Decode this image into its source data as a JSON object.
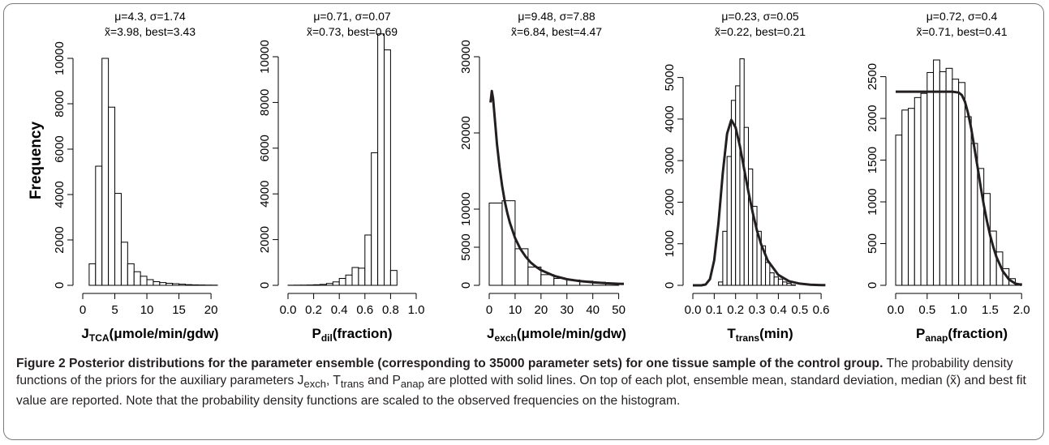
{
  "y_axis_label": "Frequency",
  "chart_data": [
    {
      "type": "bar",
      "stats_line1": "μ=4.3, σ=1.74",
      "stats_line2": "x̃=3.98, best=3.43",
      "xlabel_main": "J",
      "xlabel_sub": "TCA",
      "xlabel_rest": "(μmole/min/gdw)",
      "xlim": [
        0,
        21
      ],
      "ylim": [
        0,
        10000
      ],
      "x_ticks": [
        0,
        5,
        10,
        15,
        20
      ],
      "x_tick_labels": [
        "0",
        "5",
        "10",
        "15",
        "20"
      ],
      "y_ticks": [
        0,
        2000,
        4000,
        6000,
        8000,
        10000
      ],
      "y_tick_labels": [
        "0",
        "2000",
        "4000",
        "6000",
        "8000",
        "10000"
      ],
      "bin_edges": [
        1,
        2,
        3,
        4,
        5,
        6,
        7,
        8,
        9,
        10,
        11,
        12,
        13,
        14,
        15,
        16,
        17,
        18,
        19,
        20,
        21
      ],
      "values": [
        950,
        5250,
        10000,
        7850,
        4050,
        1900,
        950,
        600,
        400,
        250,
        160,
        120,
        90,
        70,
        50,
        30,
        20,
        15,
        10,
        8
      ],
      "curve": null
    },
    {
      "type": "bar",
      "stats_line1": "μ=0.71, σ=0.07",
      "stats_line2": "x̃=0.73, best=0.69",
      "xlabel_main": "P",
      "xlabel_sub": "dil",
      "xlabel_rest": "(fraction)",
      "xlim": [
        0,
        1
      ],
      "ylim": [
        0,
        10000
      ],
      "x_ticks": [
        0,
        0.2,
        0.4,
        0.6,
        0.8,
        1.0
      ],
      "x_tick_labels": [
        "0.0",
        "0.2",
        "0.4",
        "0.6",
        "0.8",
        "1.0"
      ],
      "y_ticks": [
        0,
        2000,
        4000,
        6000,
        8000,
        10000
      ],
      "y_tick_labels": [
        "0",
        "2000",
        "4000",
        "6000",
        "8000",
        "10000"
      ],
      "bin_edges": [
        0,
        0.05,
        0.1,
        0.15,
        0.2,
        0.25,
        0.3,
        0.35,
        0.4,
        0.45,
        0.5,
        0.55,
        0.6,
        0.65,
        0.7,
        0.75,
        0.8,
        0.85
      ],
      "values": [
        5,
        8,
        10,
        15,
        25,
        40,
        80,
        150,
        300,
        450,
        780,
        750,
        2200,
        5800,
        11000,
        10300,
        650
      ],
      "curve": null
    },
    {
      "type": "bar",
      "stats_line1": "μ=9.48, σ=7.88",
      "stats_line2": "x̃=6.84, best=4.47",
      "xlabel_main": "J",
      "xlabel_sub": "exch",
      "xlabel_rest": "(μmole/min/gdw)",
      "xlim": [
        0,
        52
      ],
      "ylim": [
        0,
        30000
      ],
      "x_ticks": [
        0,
        10,
        20,
        30,
        40,
        50
      ],
      "x_tick_labels": [
        "0",
        "10",
        "20",
        "30",
        "40",
        "50"
      ],
      "y_ticks": [
        0,
        5000,
        10000,
        20000,
        30000
      ],
      "y_tick_labels": [
        "0",
        "5000",
        "10000",
        "20000",
        "30000"
      ],
      "bin_edges": [
        0,
        5,
        10,
        15,
        20,
        25,
        30,
        35,
        40,
        45,
        50
      ],
      "values": [
        10800,
        11100,
        4800,
        2400,
        1400,
        900,
        700,
        550,
        400,
        200
      ],
      "curve": {
        "x": [
          0.5,
          1,
          1.5,
          2,
          2.5,
          3,
          4,
          5,
          6,
          7,
          8,
          10,
          12,
          14,
          16,
          18,
          20,
          25,
          30,
          35,
          40,
          45,
          50,
          52
        ],
        "y": [
          24000,
          25500,
          24500,
          22500,
          20500,
          18500,
          15500,
          13000,
          11000,
          9500,
          8200,
          6200,
          4800,
          3800,
          3000,
          2450,
          2000,
          1250,
          800,
          550,
          400,
          280,
          200,
          180
        ]
      }
    },
    {
      "type": "bar",
      "stats_line1": "μ=0.23, σ=0.05",
      "stats_line2": "x̃=0.22, best=0.21",
      "xlabel_main": "T",
      "xlabel_sub": "trans",
      "xlabel_rest": "(min)",
      "xlim": [
        0,
        0.63
      ],
      "ylim": [
        0,
        5500
      ],
      "x_ticks": [
        0,
        0.1,
        0.2,
        0.3,
        0.4,
        0.5,
        0.6
      ],
      "x_tick_labels": [
        "0.0",
        "0.1",
        "0.2",
        "0.3",
        "0.4",
        "0.5",
        "0.6"
      ],
      "y_ticks": [
        0,
        1000,
        2000,
        3000,
        4000,
        5000
      ],
      "y_tick_labels": [
        "0",
        "1000",
        "2000",
        "3000",
        "4000",
        "5000"
      ],
      "bin_edges": [
        0.12,
        0.14,
        0.16,
        0.18,
        0.2,
        0.22,
        0.24,
        0.26,
        0.28,
        0.3,
        0.32,
        0.34,
        0.36,
        0.38,
        0.4,
        0.42,
        0.44,
        0.46,
        0.48
      ],
      "values": [
        80,
        1300,
        3100,
        4450,
        4800,
        5450,
        3800,
        2800,
        1900,
        1300,
        950,
        550,
        300,
        200,
        150,
        80,
        50,
        10
      ],
      "curve": {
        "x": [
          0,
          0.04,
          0.06,
          0.08,
          0.1,
          0.12,
          0.14,
          0.16,
          0.18,
          0.2,
          0.22,
          0.24,
          0.26,
          0.28,
          0.3,
          0.32,
          0.35,
          0.4,
          0.45,
          0.5,
          0.55,
          0.6,
          0.62
        ],
        "y": [
          0,
          0,
          20,
          150,
          600,
          1500,
          2700,
          3650,
          3980,
          3800,
          3350,
          2800,
          2250,
          1750,
          1320,
          980,
          600,
          250,
          100,
          40,
          15,
          5,
          3
        ]
      }
    },
    {
      "type": "bar",
      "stats_line1": "μ=0.72, σ=0.4",
      "stats_line2": "x̃=0.71, best=0.41",
      "xlabel_main": "P",
      "xlabel_sub": "anap",
      "xlabel_rest": "(fraction)",
      "xlim": [
        0,
        2.1
      ],
      "ylim": [
        0,
        2700
      ],
      "x_ticks": [
        0,
        0.5,
        1.0,
        1.5,
        2.0
      ],
      "x_tick_labels": [
        "0.0",
        "0.5",
        "1.0",
        "1.5",
        "2.0"
      ],
      "y_ticks": [
        0,
        500,
        1000,
        1500,
        2000,
        2500
      ],
      "y_tick_labels": [
        "0",
        "500",
        "1000",
        "1500",
        "2000",
        "2500"
      ],
      "bin_edges": [
        0,
        0.1,
        0.2,
        0.3,
        0.4,
        0.5,
        0.6,
        0.7,
        0.8,
        0.9,
        1.0,
        1.1,
        1.2,
        1.3,
        1.4,
        1.5,
        1.6,
        1.7,
        1.8,
        1.9,
        2.0
      ],
      "values": [
        1800,
        2100,
        2120,
        2250,
        2300,
        2550,
        2700,
        2560,
        2600,
        2470,
        2430,
        2020,
        1700,
        1400,
        1100,
        650,
        400,
        200,
        80,
        20
      ],
      "curve": {
        "x": [
          0,
          0.2,
          0.4,
          0.6,
          0.8,
          0.9,
          1.0,
          1.05,
          1.1,
          1.15,
          1.2,
          1.25,
          1.3,
          1.35,
          1.4,
          1.45,
          1.5,
          1.55,
          1.6,
          1.7,
          1.8,
          1.9,
          2.0
        ],
        "y": [
          2320,
          2320,
          2320,
          2320,
          2320,
          2320,
          2310,
          2280,
          2200,
          2060,
          1880,
          1650,
          1420,
          1180,
          960,
          770,
          600,
          460,
          340,
          170,
          70,
          20,
          5
        ]
      }
    }
  ],
  "caption": {
    "fig_label": "Figure 2",
    "bold_text": "Posterior distributions for the parameter ensemble (corresponding to 35000 parameter sets) for one tissue sample of the control group.",
    "body_pre": "The probability density functions of the priors for the auxiliary parameters J",
    "sub_exch": "exch",
    "sep1": ", T",
    "sub_trans": "trans",
    "sep2": " and P",
    "sub_anap": "anap",
    "body_post": " are plotted with solid lines. On top of each plot, ensemble mean, standard deviation, median (x̃) and best fit value are reported. Note that the probability density functions are scaled to the observed frequencies on the histogram."
  }
}
